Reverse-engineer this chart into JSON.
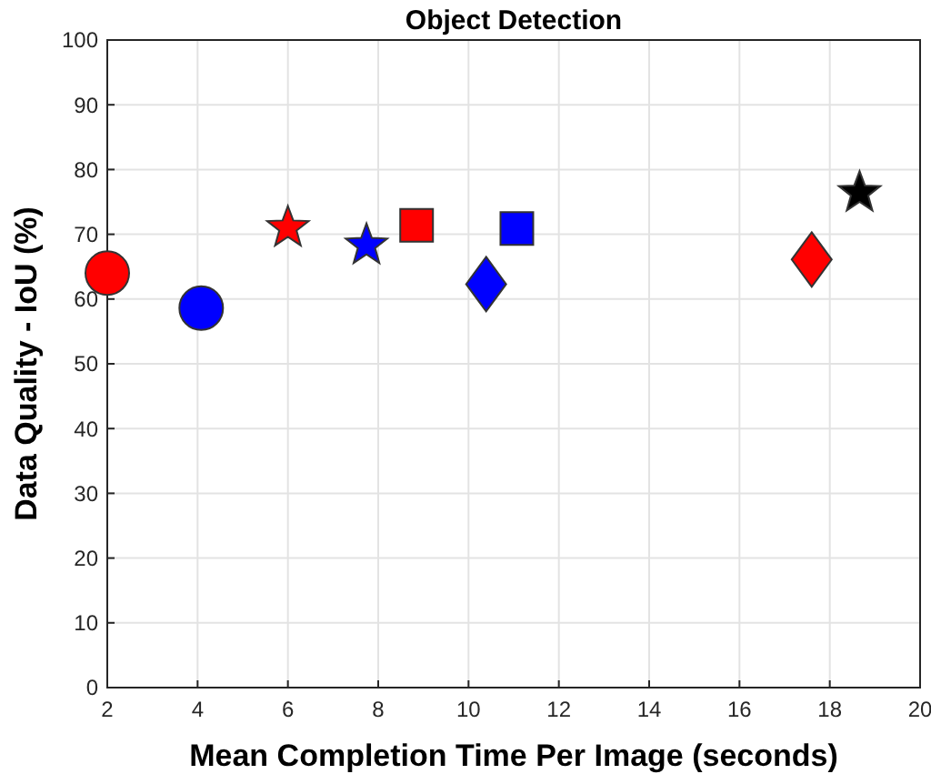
{
  "chart_data": {
    "type": "scatter",
    "title": "Object Detection",
    "xlabel": "Mean Completion Time Per Image (seconds)",
    "ylabel": "Data Quality - IoU (%)",
    "xlim": [
      2,
      20
    ],
    "xticks": [
      2,
      4,
      6,
      8,
      10,
      12,
      14,
      16,
      18,
      20
    ],
    "ylim": [
      0,
      100
    ],
    "yticks": [
      0,
      10,
      20,
      30,
      40,
      50,
      60,
      70,
      80,
      90,
      100
    ],
    "grid": true,
    "series": [
      {
        "color": "#ff0000",
        "marker": "circle",
        "x": [
          2.0
        ],
        "values": [
          64.0
        ]
      },
      {
        "color": "#0000ff",
        "marker": "circle",
        "x": [
          4.08
        ],
        "values": [
          58.6
        ]
      },
      {
        "color": "#ff0000",
        "marker": "star",
        "x": [
          6.0
        ],
        "values": [
          71.0
        ]
      },
      {
        "color": "#0000ff",
        "marker": "star",
        "x": [
          7.74
        ],
        "values": [
          68.3
        ]
      },
      {
        "color": "#ff0000",
        "marker": "square",
        "x": [
          8.85
        ],
        "values": [
          71.4
        ]
      },
      {
        "color": "#0000ff",
        "marker": "square",
        "x": [
          11.07
        ],
        "values": [
          70.9
        ]
      },
      {
        "color": "#0000ff",
        "marker": "diamond",
        "x": [
          10.39
        ],
        "values": [
          62.3
        ]
      },
      {
        "color": "#ff0000",
        "marker": "diamond",
        "x": [
          17.6
        ],
        "values": [
          66.1
        ]
      },
      {
        "color": "#000000",
        "marker": "star",
        "x": [
          18.66
        ],
        "values": [
          76.4
        ]
      }
    ]
  }
}
